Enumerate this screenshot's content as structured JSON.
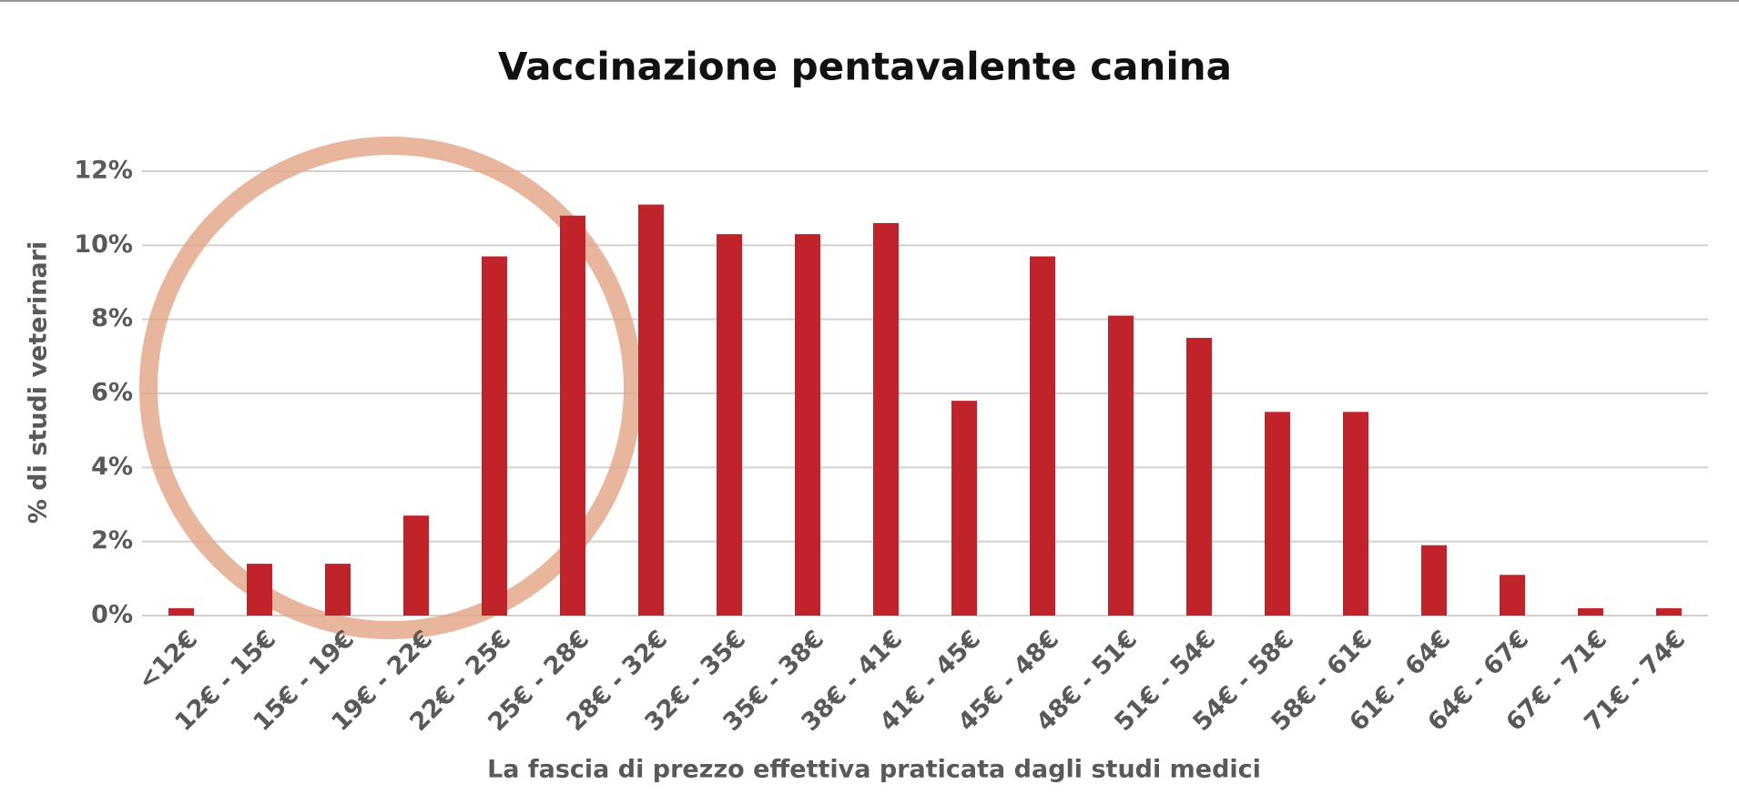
{
  "chart_data": {
    "type": "bar",
    "title": "Vaccinazione pentavalente canina",
    "x_label": "La fascia di prezzo effettiva praticata dagli studi medici",
    "y_label": "% di studi veterinari",
    "categories": [
      "<12€",
      "12€ - 15€",
      "15€ - 19€",
      "19€ - 22€",
      "22€ - 25€",
      "25€ - 28€",
      "28€ - 32€",
      "32€ - 35€",
      "35€ - 38€",
      "38€ - 41€",
      "41€ - 45€",
      "45€ - 48€",
      "48€ - 51€",
      "51€ - 54€",
      "54€ - 58€",
      "58€ - 61€",
      "61€ - 64€",
      "64€ - 67€",
      "67€ - 71€",
      "71€ - 74€"
    ],
    "values": [
      0.2,
      1.4,
      1.4,
      2.7,
      9.7,
      10.8,
      11.1,
      10.3,
      10.3,
      10.6,
      5.8,
      9.7,
      8.1,
      7.5,
      5.5,
      5.5,
      1.9,
      1.1,
      0.2,
      0.2
    ],
    "color": "#c0232a",
    "ylim": [
      0,
      12
    ],
    "yticks": [
      {
        "value": 0,
        "label": "0%"
      },
      {
        "value": 2,
        "label": "2%"
      },
      {
        "value": 4,
        "label": "4%"
      },
      {
        "value": 6,
        "label": "6%"
      },
      {
        "value": 8,
        "label": "8%"
      },
      {
        "value": 10,
        "label": "10%"
      },
      {
        "value": 12,
        "label": "12%"
      }
    ],
    "grid": true
  }
}
